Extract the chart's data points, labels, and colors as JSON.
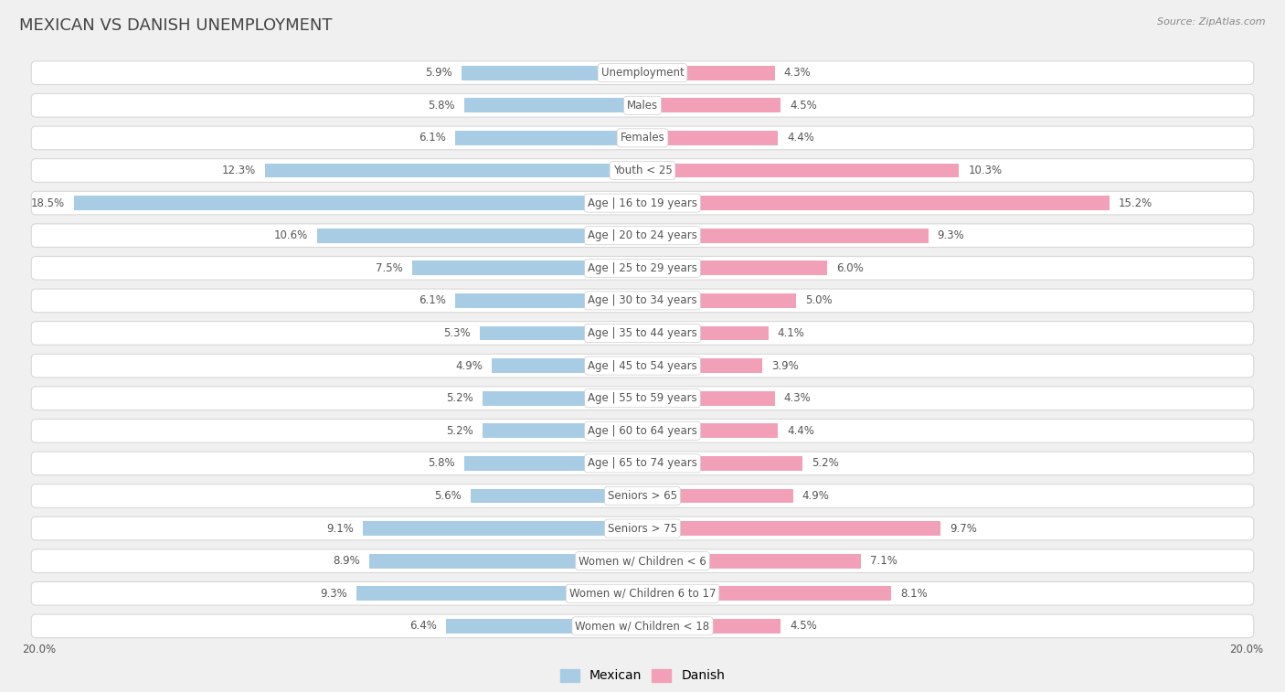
{
  "title": "MEXICAN VS DANISH UNEMPLOYMENT",
  "source": "Source: ZipAtlas.com",
  "categories": [
    "Unemployment",
    "Males",
    "Females",
    "Youth < 25",
    "Age | 16 to 19 years",
    "Age | 20 to 24 years",
    "Age | 25 to 29 years",
    "Age | 30 to 34 years",
    "Age | 35 to 44 years",
    "Age | 45 to 54 years",
    "Age | 55 to 59 years",
    "Age | 60 to 64 years",
    "Age | 65 to 74 years",
    "Seniors > 65",
    "Seniors > 75",
    "Women w/ Children < 6",
    "Women w/ Children 6 to 17",
    "Women w/ Children < 18"
  ],
  "mexican": [
    5.9,
    5.8,
    6.1,
    12.3,
    18.5,
    10.6,
    7.5,
    6.1,
    5.3,
    4.9,
    5.2,
    5.2,
    5.8,
    5.6,
    9.1,
    8.9,
    9.3,
    6.4
  ],
  "danish": [
    4.3,
    4.5,
    4.4,
    10.3,
    15.2,
    9.3,
    6.0,
    5.0,
    4.1,
    3.9,
    4.3,
    4.4,
    5.2,
    4.9,
    9.7,
    7.1,
    8.1,
    4.5
  ],
  "mexican_color": "#a8cce4",
  "danish_color": "#f2a0b8",
  "bg_color": "#f0f0f0",
  "card_color": "#ffffff",
  "card_border": "#d8d8d8",
  "max_val": 20.0,
  "legend_mexican": "Mexican",
  "legend_danish": "Danish",
  "title_fontsize": 13,
  "label_fontsize": 8.5,
  "value_fontsize": 8.5
}
